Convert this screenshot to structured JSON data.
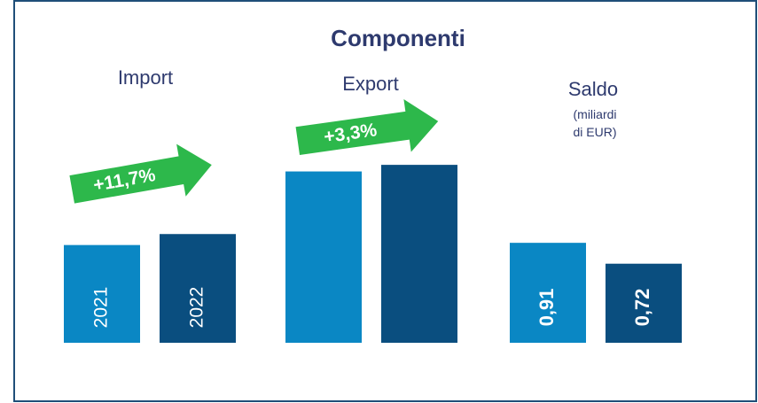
{
  "chart_data": {
    "type": "bar",
    "title": "Componenti",
    "categories": [
      "2021",
      "2022"
    ],
    "colors": [
      "#0a87c4",
      "#0a4e7f"
    ],
    "groups": [
      {
        "name": "Import",
        "values": [
          0.89,
          0.99
        ],
        "change": "+11,7%"
      },
      {
        "name": "Export",
        "values": [
          1.56,
          1.62
        ],
        "change": "+3,3%"
      },
      {
        "name": "Saldo",
        "subtitle": [
          "(miliardi",
          "di EUR)"
        ],
        "values": [
          0.91,
          0.72
        ],
        "value_labels": [
          "0,91",
          "0,72"
        ]
      }
    ]
  }
}
